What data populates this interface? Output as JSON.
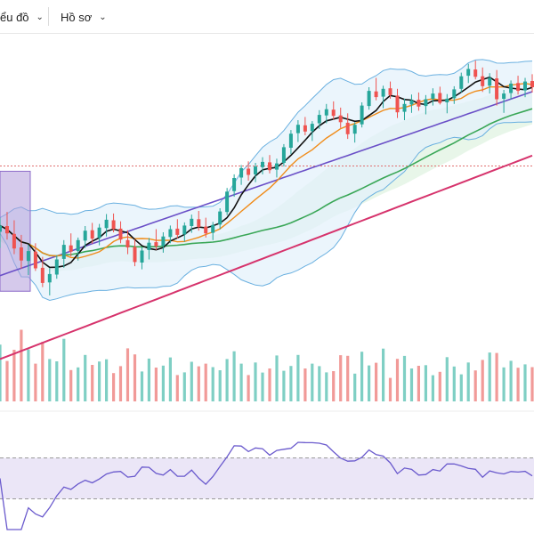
{
  "toolbar": {
    "chart_menu_label": "ểu đồ",
    "profile_menu_label": "Hồ sơ",
    "chevron": "⌄"
  },
  "colors": {
    "up": "#26a69a",
    "down": "#ef5350",
    "ma_short": "#111111",
    "ma_mid": "#f08c1a",
    "ma_long": "#3aa757",
    "ma_slow": "#6a4fc7",
    "ma_200": "#d6336c",
    "bollinger": "#6ab0e0",
    "rsi": "#6a5acd",
    "rsi_band": "#ebe6f7",
    "highlight": "#b39ddb",
    "cloud_up": "#d9f0da",
    "cloud_down": "#f5dede"
  },
  "chart_data": {
    "type": "candlestick",
    "title": "",
    "panels": [
      "price",
      "volume",
      "rsi"
    ],
    "candles": [
      [
        88.4,
        91.1,
        85.3,
        89.6
      ],
      [
        89.5,
        92.2,
        86.9,
        88.1
      ],
      [
        88,
        90.6,
        84.1,
        85.2
      ],
      [
        85.4,
        87.8,
        81.3,
        82.9
      ],
      [
        82.8,
        85.9,
        80.1,
        84.7
      ],
      [
        84.6,
        86.2,
        80.9,
        81.4
      ],
      [
        81.5,
        83.6,
        77.8,
        78.6
      ],
      [
        78.7,
        81.4,
        76.2,
        80.3
      ],
      [
        80.2,
        83.9,
        79.4,
        83.1
      ],
      [
        83.2,
        86.8,
        81.5,
        85.9
      ],
      [
        85.8,
        88.1,
        83.7,
        84.6
      ],
      [
        84.7,
        87.3,
        82.9,
        86.8
      ],
      [
        86.7,
        89.5,
        85.3,
        88.6
      ],
      [
        88.7,
        90.1,
        86.1,
        87.1
      ],
      [
        87.2,
        89.9,
        85.8,
        89.2
      ],
      [
        89.1,
        91.8,
        87.5,
        90.7
      ],
      [
        90.6,
        91.9,
        88.3,
        88.9
      ],
      [
        89,
        90.4,
        86.2,
        86.9
      ],
      [
        86.8,
        88.7,
        84.1,
        85.4
      ],
      [
        85.5,
        86.9,
        81.8,
        82.6
      ],
      [
        82.5,
        85.4,
        81.2,
        84.8
      ],
      [
        84.9,
        87.2,
        83.1,
        86.3
      ],
      [
        86.4,
        88.9,
        84.9,
        85.6
      ],
      [
        85.7,
        88.3,
        84.4,
        87.5
      ],
      [
        87.4,
        89.6,
        86.2,
        88.9
      ],
      [
        89,
        90.8,
        87.1,
        87.8
      ],
      [
        87.9,
        90.2,
        86.5,
        89.6
      ],
      [
        89.5,
        91.7,
        88.2,
        90.9
      ],
      [
        90.8,
        92.4,
        88.6,
        89.3
      ],
      [
        89.4,
        91.1,
        87.3,
        88.1
      ],
      [
        88.2,
        90.3,
        86.8,
        89.7
      ],
      [
        89.8,
        92.9,
        88.9,
        92.3
      ],
      [
        92.2,
        96.8,
        91.6,
        96.1
      ],
      [
        96.2,
        99.4,
        95.1,
        98.7
      ],
      [
        98.8,
        101.2,
        97.4,
        100.6
      ],
      [
        100.5,
        101.9,
        98.2,
        99.3
      ],
      [
        99.4,
        101.6,
        97.9,
        100.9
      ],
      [
        100.8,
        102.7,
        99.4,
        101.8
      ],
      [
        101.7,
        103.1,
        99.6,
        100.2
      ],
      [
        100.3,
        102.4,
        98.8,
        101.5
      ],
      [
        101.6,
        105.2,
        100.9,
        104.6
      ],
      [
        104.5,
        107.9,
        103.3,
        107.2
      ],
      [
        107.3,
        109.8,
        105.6,
        108.9
      ],
      [
        108.8,
        110.4,
        106.9,
        107.6
      ],
      [
        107.7,
        109.6,
        105.8,
        109.1
      ],
      [
        109.2,
        111.7,
        108.1,
        110.8
      ],
      [
        110.7,
        112.9,
        109.2,
        111.9
      ],
      [
        111.8,
        113.4,
        109.9,
        110.6
      ],
      [
        110.7,
        112.2,
        108.3,
        109.4
      ],
      [
        109.3,
        111.1,
        106.2,
        107.1
      ],
      [
        107.2,
        109.4,
        105.5,
        108.9
      ],
      [
        109,
        113.2,
        108.4,
        112.6
      ],
      [
        112.5,
        116.1,
        111.8,
        115.4
      ],
      [
        115.3,
        117.9,
        113.6,
        114.2
      ],
      [
        114.3,
        116.4,
        112.1,
        115.8
      ],
      [
        115.9,
        117.2,
        113.9,
        114.6
      ],
      [
        114.5,
        115.8,
        110.2,
        111.3
      ],
      [
        111.4,
        113.9,
        109.8,
        112.9
      ],
      [
        112.8,
        114.7,
        111.2,
        113.6
      ],
      [
        113.7,
        115.1,
        111.6,
        112.4
      ],
      [
        112.5,
        114.6,
        110.9,
        113.8
      ],
      [
        113.9,
        115.9,
        112.6,
        114.9
      ],
      [
        115,
        116.2,
        112.8,
        113.1
      ],
      [
        113.2,
        114.8,
        111.1,
        113.9
      ],
      [
        114,
        116.3,
        112.9,
        115.7
      ],
      [
        115.8,
        118.9,
        115.1,
        118.2
      ],
      [
        118.3,
        120.6,
        116.9,
        119.6
      ],
      [
        119.5,
        121.2,
        117.6,
        118.1
      ],
      [
        118.2,
        119.9,
        115.2,
        116.3
      ],
      [
        116.4,
        118.8,
        114.9,
        117.9
      ],
      [
        117.8,
        119.4,
        112.6,
        113.8
      ],
      [
        113.9,
        115.6,
        111.2,
        114.9
      ],
      [
        115,
        117.4,
        113.8,
        116.8
      ],
      [
        116.9,
        118.3,
        114.7,
        115.4
      ],
      [
        115.5,
        117.9,
        114.2,
        117.2
      ],
      [
        117.3,
        118.6,
        115.1,
        116.1
      ]
    ],
    "rsi_levels": [
      70,
      30
    ]
  }
}
